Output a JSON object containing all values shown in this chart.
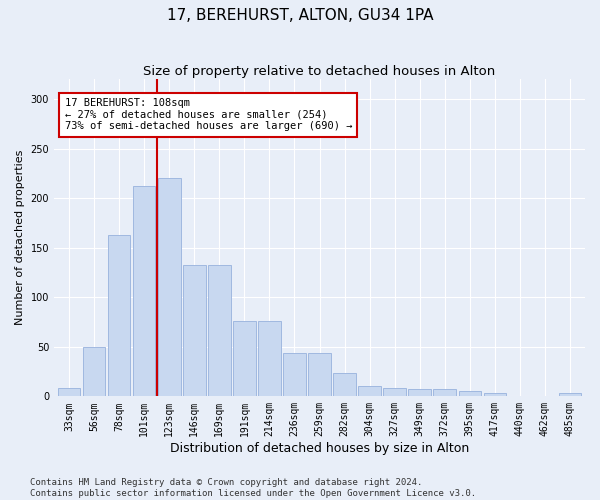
{
  "title": "17, BEREHURST, ALTON, GU34 1PA",
  "subtitle": "Size of property relative to detached houses in Alton",
  "xlabel": "Distribution of detached houses by size in Alton",
  "ylabel": "Number of detached properties",
  "categories": [
    "33sqm",
    "56sqm",
    "78sqm",
    "101sqm",
    "123sqm",
    "146sqm",
    "169sqm",
    "191sqm",
    "214sqm",
    "236sqm",
    "259sqm",
    "282sqm",
    "304sqm",
    "327sqm",
    "349sqm",
    "372sqm",
    "395sqm",
    "417sqm",
    "440sqm",
    "462sqm",
    "485sqm"
  ],
  "values": [
    8,
    50,
    163,
    212,
    220,
    133,
    133,
    76,
    76,
    44,
    44,
    24,
    10,
    8,
    7,
    7,
    5,
    3,
    0,
    0,
    3
  ],
  "bar_color": "#c8d8f0",
  "bar_edge_color": "#a0b8e0",
  "vline_color": "#cc0000",
  "vline_pos": 3.5,
  "annotation_text": "17 BEREHURST: 108sqm\n← 27% of detached houses are smaller (254)\n73% of semi-detached houses are larger (690) →",
  "annotation_box_color": "white",
  "annotation_box_edge": "#cc0000",
  "ylim": [
    0,
    320
  ],
  "yticks": [
    0,
    50,
    100,
    150,
    200,
    250,
    300
  ],
  "background_color": "#e8eef8",
  "footer_text": "Contains HM Land Registry data © Crown copyright and database right 2024.\nContains public sector information licensed under the Open Government Licence v3.0.",
  "title_fontsize": 11,
  "subtitle_fontsize": 9.5,
  "xlabel_fontsize": 9,
  "ylabel_fontsize": 8,
  "tick_fontsize": 7,
  "annotation_fontsize": 7.5,
  "footer_fontsize": 6.5
}
